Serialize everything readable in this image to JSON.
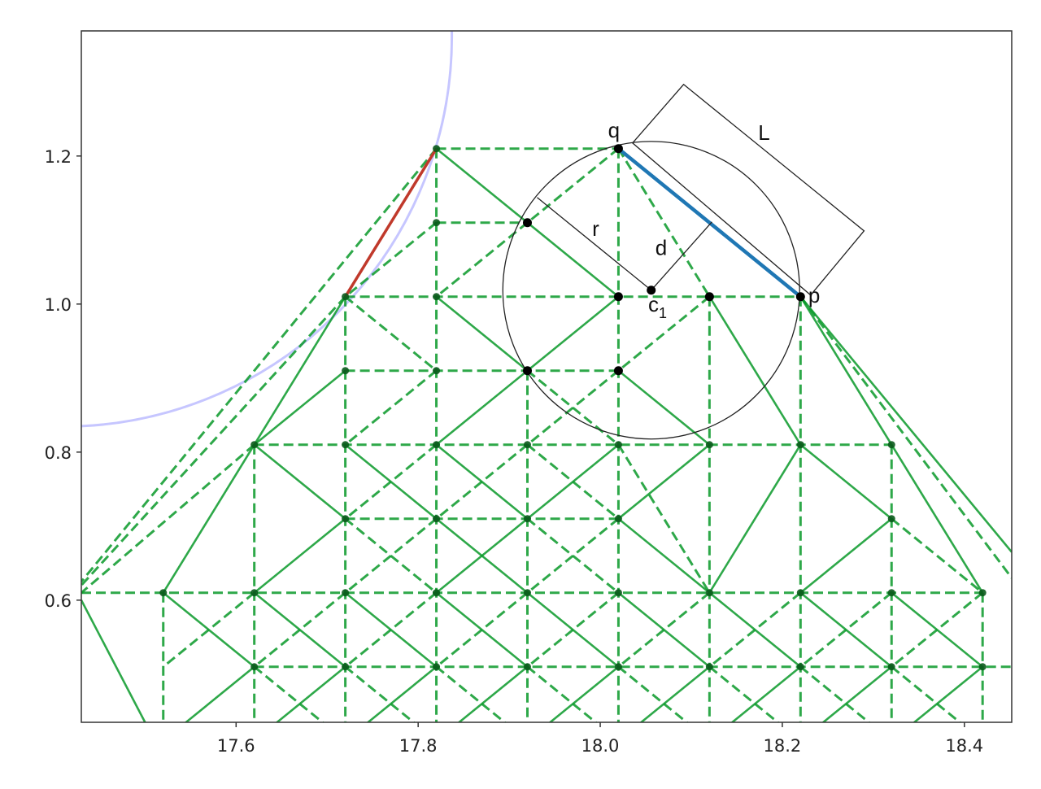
{
  "chart_data": {
    "type": "line",
    "title": "",
    "xlabel": "",
    "ylabel": "",
    "xlim": [
      17.43,
      18.452
    ],
    "ylim": [
      0.435,
      1.369
    ],
    "grid": false,
    "xticks": [
      17.6,
      17.8,
      18.0,
      18.2,
      18.4
    ],
    "xtick_labels": [
      "17.6",
      "17.8",
      "18.0",
      "18.2",
      "18.4"
    ],
    "yticks": [
      0.6,
      0.8,
      1.0,
      1.2
    ],
    "ytick_labels": [
      "0.6",
      "0.8",
      "1.0",
      "1.2"
    ],
    "colors": {
      "mesh": "#0a9a2a",
      "node": "#0b5a1c",
      "highlight_edge": "#1f77b4",
      "boundary_edge": "#c0392b",
      "arc": "#b8b8ff",
      "construction": "#222222"
    },
    "mesh_nodes": [
      [
        17.82,
        1.21
      ],
      [
        18.02,
        1.21
      ],
      [
        17.82,
        1.11
      ],
      [
        17.92,
        1.11
      ],
      [
        17.72,
        1.01
      ],
      [
        17.82,
        1.01
      ],
      [
        18.02,
        1.01
      ],
      [
        18.12,
        1.01
      ],
      [
        18.22,
        1.01
      ],
      [
        17.72,
        0.91
      ],
      [
        17.82,
        0.91
      ],
      [
        17.92,
        0.91
      ],
      [
        18.02,
        0.91
      ],
      [
        17.62,
        0.81
      ],
      [
        17.72,
        0.81
      ],
      [
        17.82,
        0.81
      ],
      [
        17.92,
        0.81
      ],
      [
        18.02,
        0.81
      ],
      [
        18.12,
        0.81
      ],
      [
        18.22,
        0.81
      ],
      [
        18.32,
        0.81
      ],
      [
        17.72,
        0.71
      ],
      [
        17.82,
        0.71
      ],
      [
        17.92,
        0.71
      ],
      [
        18.02,
        0.71
      ],
      [
        18.32,
        0.71
      ],
      [
        17.52,
        0.61
      ],
      [
        17.62,
        0.61
      ],
      [
        17.72,
        0.61
      ],
      [
        17.82,
        0.61
      ],
      [
        17.92,
        0.61
      ],
      [
        18.02,
        0.61
      ],
      [
        18.12,
        0.61
      ],
      [
        18.22,
        0.61
      ],
      [
        18.32,
        0.61
      ],
      [
        18.42,
        0.61
      ],
      [
        17.62,
        0.51
      ],
      [
        17.72,
        0.51
      ],
      [
        17.82,
        0.51
      ],
      [
        17.92,
        0.51
      ],
      [
        18.02,
        0.51
      ],
      [
        18.12,
        0.51
      ],
      [
        18.22,
        0.51
      ],
      [
        18.32,
        0.51
      ],
      [
        18.42,
        0.51
      ]
    ],
    "dashed_edges": [
      [
        17.52,
        0.61,
        17.52,
        0.435
      ],
      [
        17.62,
        0.81,
        17.62,
        0.435
      ],
      [
        17.72,
        1.01,
        17.72,
        0.435
      ],
      [
        17.82,
        1.21,
        17.82,
        0.435
      ],
      [
        17.92,
        0.91,
        17.92,
        0.435
      ],
      [
        18.02,
        1.21,
        18.02,
        0.435
      ],
      [
        18.12,
        1.01,
        18.12,
        0.435
      ],
      [
        18.22,
        1.01,
        18.22,
        0.435
      ],
      [
        18.32,
        0.81,
        18.32,
        0.435
      ],
      [
        18.42,
        0.61,
        18.42,
        0.435
      ],
      [
        17.82,
        1.21,
        18.02,
        1.21
      ],
      [
        17.82,
        1.11,
        17.92,
        1.11
      ],
      [
        17.72,
        1.01,
        18.22,
        1.01
      ],
      [
        17.72,
        0.91,
        18.02,
        0.91
      ],
      [
        17.62,
        0.81,
        18.32,
        0.81
      ],
      [
        17.72,
        0.71,
        18.02,
        0.71
      ],
      [
        17.43,
        0.61,
        18.42,
        0.61
      ],
      [
        17.62,
        0.51,
        18.452,
        0.51
      ],
      [
        18.02,
        1.21,
        17.82,
        1.01
      ],
      [
        18.02,
        1.21,
        18.12,
        1.01
      ],
      [
        17.82,
        1.11,
        17.72,
        1.01
      ],
      [
        17.72,
        1.01,
        17.82,
        0.91
      ],
      [
        18.12,
        1.01,
        18.02,
        0.91
      ],
      [
        17.92,
        0.91,
        18.02,
        0.81
      ],
      [
        17.82,
        0.91,
        17.72,
        0.81
      ],
      [
        18.02,
        0.91,
        17.92,
        0.81
      ],
      [
        17.72,
        1.01,
        17.43,
        0.62
      ],
      [
        17.82,
        1.21,
        17.43,
        0.625
      ],
      [
        17.62,
        0.81,
        17.43,
        0.61
      ],
      [
        18.22,
        1.01,
        18.452,
        0.63
      ],
      [
        17.82,
        0.81,
        17.72,
        0.71
      ],
      [
        17.92,
        0.81,
        17.82,
        0.71
      ],
      [
        17.92,
        0.81,
        18.02,
        0.71
      ],
      [
        18.02,
        0.81,
        18.12,
        0.61
      ],
      [
        17.72,
        0.71,
        17.82,
        0.61
      ],
      [
        17.82,
        0.71,
        17.72,
        0.61
      ],
      [
        17.92,
        0.71,
        18.02,
        0.61
      ],
      [
        18.02,
        0.71,
        17.92,
        0.61
      ],
      [
        18.32,
        0.71,
        18.42,
        0.61
      ],
      [
        17.62,
        0.61,
        17.52,
        0.51
      ],
      [
        17.72,
        0.61,
        17.62,
        0.51
      ],
      [
        17.82,
        0.61,
        17.72,
        0.51
      ],
      [
        17.92,
        0.61,
        17.82,
        0.51
      ],
      [
        18.02,
        0.61,
        17.92,
        0.51
      ],
      [
        18.12,
        0.61,
        18.02,
        0.51
      ],
      [
        18.22,
        0.61,
        18.12,
        0.51
      ],
      [
        18.32,
        0.61,
        18.22,
        0.51
      ],
      [
        18.42,
        0.61,
        18.32,
        0.51
      ],
      [
        17.62,
        0.51,
        17.72,
        0.41
      ],
      [
        17.72,
        0.51,
        17.82,
        0.41
      ],
      [
        17.82,
        0.51,
        17.92,
        0.41
      ],
      [
        17.92,
        0.51,
        18.02,
        0.41
      ],
      [
        18.02,
        0.51,
        18.12,
        0.41
      ],
      [
        18.12,
        0.51,
        18.22,
        0.41
      ],
      [
        18.22,
        0.51,
        18.32,
        0.41
      ],
      [
        18.32,
        0.51,
        18.42,
        0.41
      ]
    ],
    "solid_edges": [
      [
        17.82,
        1.21,
        18.02,
        1.01
      ],
      [
        17.82,
        1.01,
        17.92,
        0.91
      ],
      [
        18.02,
        1.01,
        17.92,
        0.91
      ],
      [
        17.92,
        0.91,
        17.82,
        0.81
      ],
      [
        18.02,
        0.91,
        18.12,
        0.81
      ],
      [
        18.12,
        1.01,
        18.22,
        0.81
      ],
      [
        18.22,
        1.01,
        18.32,
        0.81
      ],
      [
        18.22,
        1.01,
        18.452,
        0.665
      ],
      [
        17.72,
        1.01,
        17.62,
        0.81
      ],
      [
        17.72,
        0.91,
        17.62,
        0.81
      ],
      [
        17.62,
        0.81,
        17.52,
        0.61
      ],
      [
        17.43,
        0.6,
        17.5,
        0.435
      ],
      [
        17.62,
        0.81,
        17.72,
        0.71
      ],
      [
        17.72,
        0.81,
        17.82,
        0.71
      ],
      [
        17.82,
        0.81,
        17.92,
        0.71
      ],
      [
        18.02,
        0.81,
        17.92,
        0.71
      ],
      [
        18.12,
        0.81,
        18.02,
        0.71
      ],
      [
        18.22,
        0.81,
        18.32,
        0.71
      ],
      [
        18.22,
        0.81,
        18.12,
        0.61
      ],
      [
        18.32,
        0.81,
        18.42,
        0.61
      ],
      [
        17.72,
        0.71,
        17.62,
        0.61
      ],
      [
        17.82,
        0.71,
        17.92,
        0.61
      ],
      [
        17.92,
        0.71,
        17.82,
        0.61
      ],
      [
        18.02,
        0.71,
        18.12,
        0.61
      ],
      [
        18.32,
        0.71,
        18.22,
        0.61
      ],
      [
        17.52,
        0.61,
        17.62,
        0.51
      ],
      [
        17.62,
        0.61,
        17.72,
        0.51
      ],
      [
        17.72,
        0.61,
        17.82,
        0.51
      ],
      [
        17.82,
        0.61,
        17.92,
        0.51
      ],
      [
        17.92,
        0.61,
        18.02,
        0.51
      ],
      [
        18.02,
        0.61,
        18.12,
        0.51
      ],
      [
        18.12,
        0.61,
        18.22,
        0.51
      ],
      [
        18.22,
        0.61,
        18.32,
        0.51
      ],
      [
        18.32,
        0.61,
        18.42,
        0.51
      ],
      [
        17.62,
        0.51,
        17.52,
        0.41
      ],
      [
        17.72,
        0.51,
        17.62,
        0.41
      ],
      [
        17.82,
        0.51,
        17.72,
        0.41
      ],
      [
        17.92,
        0.51,
        17.82,
        0.41
      ],
      [
        18.02,
        0.51,
        17.92,
        0.41
      ],
      [
        18.12,
        0.51,
        18.02,
        0.41
      ],
      [
        18.22,
        0.51,
        18.12,
        0.41
      ],
      [
        18.32,
        0.51,
        18.22,
        0.41
      ],
      [
        18.42,
        0.51,
        18.32,
        0.41
      ]
    ],
    "highlight_edge": [
      18.02,
      1.21,
      18.22,
      1.01
    ],
    "boundary_edge": [
      17.72,
      1.01,
      17.82,
      1.21
    ],
    "arc": {
      "center": [
        17.41,
        1.3615
      ],
      "radius_x": 0.427,
      "radius_y": 0.527
    },
    "circle": {
      "center": [
        18.056,
        1.0187
      ],
      "radius_x": 0.163,
      "radius_y": 0.201
    },
    "rectangle_L": [
      [
        18.0355,
        1.2176
      ],
      [
        18.0916,
        1.2967
      ],
      [
        18.2898,
        1.0989
      ],
      [
        18.2311,
        1.0121
      ]
    ],
    "segment_r": [
      17.9307,
      1.144,
      18.056,
      1.0187
    ],
    "segment_d": [
      18.056,
      1.0187,
      18.1227,
      1.111
    ],
    "marked_points": [
      [
        18.02,
        1.21
      ],
      [
        18.22,
        1.01
      ],
      [
        18.056,
        1.0187
      ],
      [
        17.92,
        1.11
      ],
      [
        18.02,
        1.01
      ],
      [
        18.12,
        1.01
      ],
      [
        17.92,
        0.91
      ],
      [
        18.02,
        0.91
      ]
    ],
    "annotations": [
      {
        "text": "q",
        "x": 18.015,
        "y": 1.225
      },
      {
        "text": "L",
        "x": 18.18,
        "y": 1.222
      },
      {
        "text": "r",
        "x": 17.995,
        "y": 1.092
      },
      {
        "text": "d",
        "x": 18.067,
        "y": 1.066
      },
      {
        "text": "c",
        "sub": "1",
        "x": 18.063,
        "y": 0.99
      },
      {
        "text": "p",
        "x": 18.235,
        "y": 1.002
      }
    ]
  }
}
